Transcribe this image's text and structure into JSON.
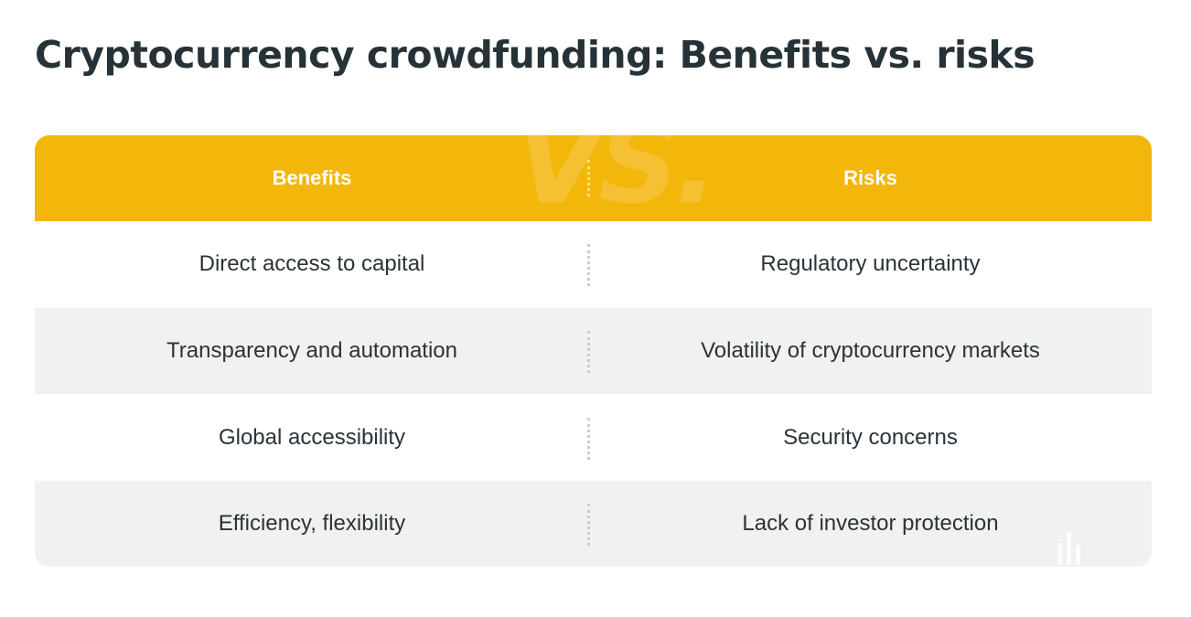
{
  "title": "Cryptocurrency crowdfunding: Benefits vs. risks",
  "header": {
    "watermark": "VS.",
    "benefits_label": "Benefits",
    "risks_label": "Risks"
  },
  "rows": [
    {
      "benefit": "Direct access to capital",
      "risk": "Regulatory uncertainty"
    },
    {
      "benefit": "Transparency and automation",
      "risk": "Volatility of cryptocurrency markets"
    },
    {
      "benefit": "Global accessibility",
      "risk": "Security concerns"
    },
    {
      "benefit": "Efficiency, flexibility",
      "risk": "Lack of investor protection"
    }
  ],
  "colors": {
    "header_bg": "#f3b60b",
    "title": "#263238",
    "text": "#2a3338",
    "shaded_row": "#f1f1f1",
    "divider": "#c8cdd0"
  }
}
